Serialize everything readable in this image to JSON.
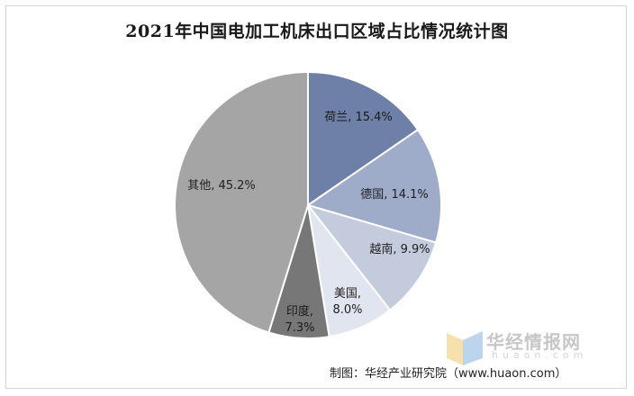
{
  "chart_data": {
    "type": "pie",
    "title": "2021年中国电加工机床出口区域占比情况统计图",
    "slices": [
      {
        "label": "荷兰",
        "value": 15.4,
        "display": "荷兰, 15.4%",
        "color": "#6e80a8"
      },
      {
        "label": "德国",
        "value": 14.1,
        "display": "德国, 14.1%",
        "color": "#9eabc9"
      },
      {
        "label": "越南",
        "value": 9.9,
        "display": "越南, 9.9%",
        "color": "#c3cbdd"
      },
      {
        "label": "美国",
        "value": 8.0,
        "display_lines": [
          "美国,",
          "8.0%"
        ],
        "color": "#e1e5ef"
      },
      {
        "label": "印度",
        "value": 7.3,
        "display_lines": [
          "印度,",
          "7.3%"
        ],
        "color": "#777777"
      },
      {
        "label": "其他",
        "value": 45.2,
        "display": "其他, 45.2%",
        "color": "#a5a5a5"
      }
    ]
  },
  "watermark": {
    "brand_cn": "华经情报网",
    "brand_en": "huaon.com"
  },
  "source": "制图：华经产业研究院（www.huaon.com）"
}
